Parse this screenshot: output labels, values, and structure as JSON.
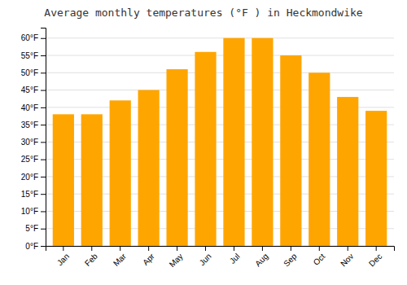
{
  "chart_data": {
    "type": "bar",
    "title": "Average monthly temperatures (°F ) in Heckmondwike",
    "categories": [
      "Jan",
      "Feb",
      "Mar",
      "Apr",
      "May",
      "Jun",
      "Jul",
      "Aug",
      "Sep",
      "Oct",
      "Nov",
      "Dec"
    ],
    "values": [
      38,
      38,
      42,
      45,
      51,
      56,
      60,
      60,
      55,
      50,
      43,
      39
    ],
    "color": "#FFA500",
    "ylim": [
      0,
      63
    ],
    "yticks": [
      {
        "value": 0,
        "label": "0°F"
      },
      {
        "value": 5,
        "label": "5°F"
      },
      {
        "value": 10,
        "label": "10°F"
      },
      {
        "value": 15,
        "label": "15°F"
      },
      {
        "value": 20,
        "label": "20°F"
      },
      {
        "value": 25,
        "label": "25°F"
      },
      {
        "value": 30,
        "label": "30°F"
      },
      {
        "value": 35,
        "label": "35°F"
      },
      {
        "value": 40,
        "label": "40°F"
      },
      {
        "value": 45,
        "label": "45°F"
      },
      {
        "value": 50,
        "label": "50°F"
      },
      {
        "value": 55,
        "label": "55°F"
      },
      {
        "value": 60,
        "label": "60°F"
      }
    ],
    "grid": true
  }
}
